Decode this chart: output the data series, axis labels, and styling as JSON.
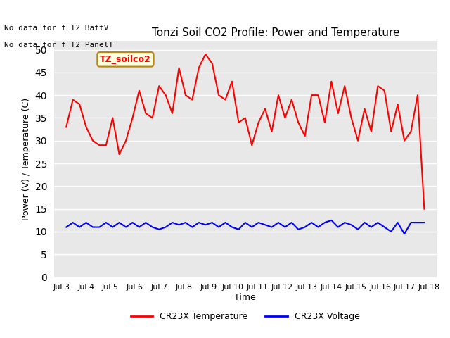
{
  "title": "Tonzi Soil CO2 Profile: Power and Temperature",
  "ylabel": "Power (V) / Temperature (C)",
  "xlabel": "Time",
  "no_data_text": [
    "No data for f_T2_BattV",
    "No data for f_T2_PanelT"
  ],
  "legend_label_box": "TZ_soilco2",
  "legend_entries": [
    "CR23X Temperature",
    "CR23X Voltage"
  ],
  "legend_colors": [
    "red",
    "blue"
  ],
  "ylim": [
    0,
    52
  ],
  "yticks": [
    0,
    5,
    10,
    15,
    20,
    25,
    30,
    35,
    40,
    45,
    50
  ],
  "xtick_labels": [
    "Jul 3",
    "Jul 4",
    "Jul 5",
    "Jul 6",
    "Jul 7",
    "Jul 8",
    "Jul 9",
    "Jul 10",
    "Jul 11",
    "Jul 12",
    "Jul 13",
    "Jul 14",
    "Jul 15",
    "Jul 16",
    "Jul 17",
    "Jul 18"
  ],
  "bg_color": "#e8e8e8",
  "grid_color": "white",
  "temp_color": "red",
  "volt_color": "blue",
  "temp_data": [
    33,
    39,
    38,
    33,
    30,
    29,
    29,
    35,
    27,
    30,
    35,
    41,
    36,
    35,
    42,
    40,
    36,
    46,
    40,
    39,
    46,
    49,
    47,
    40,
    39,
    43,
    34,
    35,
    29,
    34,
    37,
    32,
    40,
    35,
    39,
    34,
    31,
    40,
    40,
    34,
    43,
    36,
    42,
    35,
    30,
    37,
    32,
    42,
    41,
    32,
    38,
    30,
    32,
    40,
    15
  ],
  "volt_data": [
    11,
    12,
    11,
    12,
    11,
    11,
    12,
    11,
    12,
    11,
    12,
    11,
    12,
    11,
    10.5,
    11,
    12,
    11.5,
    12,
    11,
    12,
    11.5,
    12,
    11,
    12,
    11,
    10.5,
    12,
    11,
    12,
    11.5,
    11,
    12,
    11,
    12,
    10.5,
    11,
    12,
    11,
    12,
    12.5,
    11,
    12,
    11.5,
    10.5,
    12,
    11,
    12,
    11,
    10,
    12,
    9.5,
    12,
    12,
    12
  ]
}
